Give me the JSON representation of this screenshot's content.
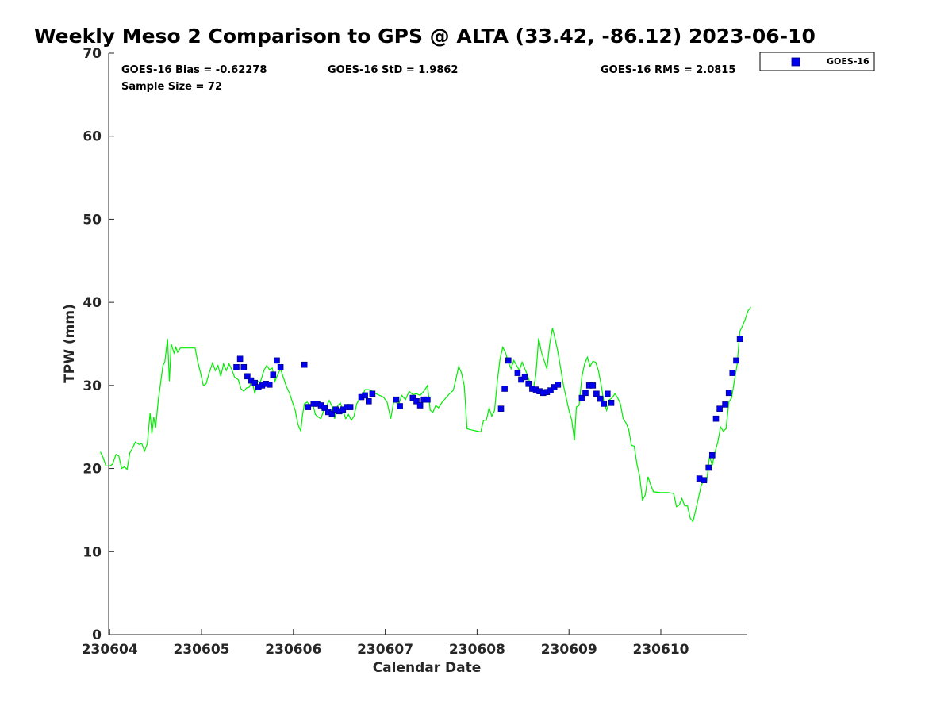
{
  "chart_data": {
    "type": "scatter",
    "title": "Weekly Meso 2 Comparison to GPS @ ALTA (33.42, -86.12) 2023-06-10",
    "xlabel": "Calendar Date",
    "ylabel": "TPW (mm)",
    "x_ticks": [
      "230604",
      "230605",
      "230606",
      "230607",
      "230608",
      "230609",
      "230610"
    ],
    "y_ticks": [
      "0",
      "10",
      "20",
      "30",
      "40",
      "50",
      "60",
      "70"
    ],
    "xlim": [
      0,
      7
    ],
    "ylim": [
      0,
      70
    ],
    "x_unit_note_days_from": "230604",
    "stats": {
      "bias": "GOES-16 Bias = -0.62278",
      "std": "GOES-16 StD = 1.9862",
      "rms": "GOES-16 RMS = 2.0815",
      "sample": "Sample Size = 72"
    },
    "legend": {
      "placement": "top-right-outside",
      "entries": [
        "GOES-16"
      ]
    },
    "colors": {
      "gps_line": "#00ee00",
      "goes_marker": "#0000ee",
      "marker_edge": "#000080"
    },
    "series": [
      {
        "kind": "line",
        "points": [
          [
            -0.1,
            22.0
          ],
          [
            -0.07,
            21.3
          ],
          [
            -0.04,
            20.3
          ],
          [
            0.0,
            20.3
          ],
          [
            0.03,
            20.5
          ],
          [
            0.07,
            21.7
          ],
          [
            0.1,
            21.5
          ],
          [
            0.13,
            20.0
          ],
          [
            0.16,
            20.2
          ],
          [
            0.19,
            19.9
          ],
          [
            0.22,
            21.9
          ],
          [
            0.25,
            22.5
          ],
          [
            0.28,
            23.2
          ],
          [
            0.32,
            22.9
          ],
          [
            0.35,
            23.0
          ],
          [
            0.38,
            22.1
          ],
          [
            0.41,
            23.0
          ],
          [
            0.44,
            26.7
          ],
          [
            0.46,
            24.2
          ],
          [
            0.48,
            26.2
          ],
          [
            0.5,
            24.9
          ],
          [
            0.53,
            28.3
          ],
          [
            0.56,
            30.7
          ],
          [
            0.58,
            32.4
          ],
          [
            0.6,
            32.8
          ],
          [
            0.63,
            35.6
          ],
          [
            0.65,
            30.5
          ],
          [
            0.67,
            35.0
          ],
          [
            0.7,
            33.9
          ],
          [
            0.72,
            34.6
          ],
          [
            0.74,
            34.0
          ],
          [
            0.77,
            34.5
          ],
          [
            0.85,
            34.5
          ],
          [
            0.93,
            34.5
          ],
          [
            0.96,
            32.8
          ],
          [
            0.99,
            31.5
          ],
          [
            1.02,
            30.0
          ],
          [
            1.05,
            30.2
          ],
          [
            1.08,
            31.4
          ],
          [
            1.12,
            32.7
          ],
          [
            1.15,
            31.8
          ],
          [
            1.18,
            32.4
          ],
          [
            1.21,
            31.1
          ],
          [
            1.24,
            32.6
          ],
          [
            1.27,
            31.8
          ],
          [
            1.3,
            32.6
          ],
          [
            1.33,
            31.9
          ],
          [
            1.36,
            31.0
          ],
          [
            1.4,
            30.7
          ],
          [
            1.43,
            29.6
          ],
          [
            1.46,
            29.3
          ],
          [
            1.49,
            29.7
          ],
          [
            1.52,
            29.8
          ],
          [
            1.55,
            30.6
          ],
          [
            1.58,
            29.0
          ],
          [
            1.61,
            30.5
          ],
          [
            1.64,
            30.4
          ],
          [
            1.68,
            31.8
          ],
          [
            1.71,
            32.4
          ],
          [
            1.74,
            31.9
          ],
          [
            1.77,
            32.1
          ],
          [
            1.8,
            30.5
          ],
          [
            1.83,
            31.3
          ],
          [
            1.86,
            32.0
          ],
          [
            1.89,
            31.0
          ],
          [
            1.92,
            30.0
          ],
          [
            1.96,
            29.0
          ],
          [
            1.99,
            28.0
          ],
          [
            2.02,
            27.0
          ],
          [
            2.05,
            25.3
          ],
          [
            2.08,
            24.5
          ],
          [
            2.1,
            26.5
          ],
          [
            2.12,
            27.8
          ],
          [
            2.15,
            28.0
          ],
          [
            2.18,
            27.6
          ],
          [
            2.21,
            27.8
          ],
          [
            2.24,
            26.5
          ],
          [
            2.27,
            26.2
          ],
          [
            2.3,
            26.0
          ],
          [
            2.33,
            27.0
          ],
          [
            2.36,
            27.5
          ],
          [
            2.39,
            28.2
          ],
          [
            2.42,
            27.5
          ],
          [
            2.45,
            26.0
          ],
          [
            2.48,
            27.5
          ],
          [
            2.51,
            27.9
          ],
          [
            2.54,
            27.0
          ],
          [
            2.57,
            26.0
          ],
          [
            2.6,
            26.5
          ],
          [
            2.63,
            25.8
          ],
          [
            2.66,
            26.3
          ],
          [
            2.69,
            27.8
          ],
          [
            2.72,
            28.4
          ],
          [
            2.75,
            28.6
          ],
          [
            2.78,
            29.5
          ],
          [
            2.82,
            29.5
          ],
          [
            2.86,
            29.3
          ],
          [
            2.9,
            29.0
          ],
          [
            2.94,
            28.8
          ],
          [
            2.98,
            28.6
          ],
          [
            3.02,
            28.0
          ],
          [
            3.06,
            26.0
          ],
          [
            3.1,
            28.5
          ],
          [
            3.14,
            27.5
          ],
          [
            3.18,
            28.8
          ],
          [
            3.22,
            28.3
          ],
          [
            3.26,
            29.3
          ],
          [
            3.3,
            28.9
          ],
          [
            3.34,
            29.0
          ],
          [
            3.38,
            28.8
          ],
          [
            3.42,
            29.3
          ],
          [
            3.46,
            30.0
          ],
          [
            3.49,
            27.0
          ],
          [
            3.52,
            26.8
          ],
          [
            3.55,
            27.6
          ],
          [
            3.58,
            27.3
          ],
          [
            3.62,
            28.0
          ],
          [
            3.66,
            28.5
          ],
          [
            3.7,
            29.0
          ],
          [
            3.74,
            29.4
          ],
          [
            3.77,
            30.8
          ],
          [
            3.8,
            32.3
          ],
          [
            3.83,
            31.5
          ],
          [
            3.86,
            30.0
          ],
          [
            3.89,
            24.8
          ],
          [
            3.92,
            24.7
          ],
          [
            3.96,
            24.6
          ],
          [
            4.0,
            24.5
          ],
          [
            4.04,
            24.4
          ],
          [
            4.07,
            25.8
          ],
          [
            4.1,
            25.8
          ],
          [
            4.13,
            27.3
          ],
          [
            4.16,
            26.3
          ],
          [
            4.19,
            27.0
          ],
          [
            4.22,
            30.5
          ],
          [
            4.25,
            33.2
          ],
          [
            4.28,
            34.6
          ],
          [
            4.31,
            33.9
          ],
          [
            4.34,
            32.8
          ],
          [
            4.37,
            32.0
          ],
          [
            4.4,
            33.0
          ],
          [
            4.43,
            32.4
          ],
          [
            4.46,
            31.8
          ],
          [
            4.49,
            32.8
          ],
          [
            4.52,
            32.0
          ],
          [
            4.55,
            31.2
          ],
          [
            4.58,
            30.1
          ],
          [
            4.61,
            29.4
          ],
          [
            4.64,
            31.3
          ],
          [
            4.67,
            35.7
          ],
          [
            4.7,
            34.0
          ],
          [
            4.73,
            33.0
          ],
          [
            4.76,
            32.0
          ],
          [
            4.79,
            35.0
          ],
          [
            4.82,
            36.9
          ],
          [
            4.85,
            35.6
          ],
          [
            4.88,
            34.0
          ],
          [
            4.91,
            32.0
          ],
          [
            4.94,
            30.0
          ],
          [
            4.97,
            28.5
          ],
          [
            5.0,
            27.0
          ],
          [
            5.03,
            25.8
          ],
          [
            5.06,
            23.4
          ],
          [
            5.08,
            27.4
          ],
          [
            5.11,
            27.6
          ],
          [
            5.14,
            31.0
          ],
          [
            5.17,
            32.6
          ],
          [
            5.2,
            33.4
          ],
          [
            5.23,
            32.3
          ],
          [
            5.26,
            32.9
          ],
          [
            5.29,
            32.8
          ],
          [
            5.32,
            31.8
          ],
          [
            5.35,
            30.1
          ],
          [
            5.38,
            28.0
          ],
          [
            5.41,
            27.0
          ],
          [
            5.44,
            28.3
          ],
          [
            5.47,
            28.5
          ],
          [
            5.5,
            29.0
          ],
          [
            5.53,
            28.5
          ],
          [
            5.56,
            27.8
          ],
          [
            5.59,
            26.0
          ],
          [
            5.62,
            25.5
          ],
          [
            5.65,
            24.7
          ],
          [
            5.68,
            22.8
          ],
          [
            5.71,
            22.7
          ],
          [
            5.74,
            20.5
          ],
          [
            5.77,
            19.0
          ],
          [
            5.8,
            16.2
          ],
          [
            5.83,
            16.8
          ],
          [
            5.86,
            19.0
          ],
          [
            5.89,
            18.0
          ],
          [
            5.92,
            17.2
          ],
          [
            6.0,
            17.1
          ],
          [
            6.08,
            17.1
          ],
          [
            6.14,
            17.0
          ],
          [
            6.17,
            15.4
          ],
          [
            6.2,
            15.6
          ],
          [
            6.23,
            16.4
          ],
          [
            6.26,
            15.5
          ],
          [
            6.29,
            15.5
          ],
          [
            6.32,
            14.0
          ],
          [
            6.35,
            13.6
          ],
          [
            6.38,
            15.0
          ],
          [
            6.41,
            16.5
          ],
          [
            6.44,
            18.0
          ],
          [
            6.47,
            18.6
          ],
          [
            6.5,
            18.5
          ],
          [
            6.53,
            21.5
          ],
          [
            6.56,
            20.4
          ],
          [
            6.59,
            22.0
          ],
          [
            6.62,
            23.2
          ],
          [
            6.65,
            25.0
          ],
          [
            6.68,
            24.5
          ],
          [
            6.71,
            24.8
          ],
          [
            6.74,
            28.0
          ],
          [
            6.77,
            28.5
          ],
          [
            6.8,
            30.5
          ],
          [
            6.83,
            32.5
          ],
          [
            6.86,
            36.5
          ],
          [
            6.89,
            37.2
          ],
          [
            6.92,
            38.0
          ],
          [
            6.95,
            39.0
          ],
          [
            6.98,
            39.4
          ]
        ]
      },
      {
        "name": "GOES-16",
        "kind": "scatter",
        "points": [
          [
            1.38,
            32.2
          ],
          [
            1.42,
            33.2
          ],
          [
            1.46,
            32.2
          ],
          [
            1.5,
            31.1
          ],
          [
            1.54,
            30.6
          ],
          [
            1.58,
            30.3
          ],
          [
            1.62,
            29.8
          ],
          [
            1.66,
            30.0
          ],
          [
            1.7,
            30.2
          ],
          [
            1.74,
            30.1
          ],
          [
            1.78,
            31.3
          ],
          [
            1.82,
            33.0
          ],
          [
            1.86,
            32.2
          ],
          [
            2.12,
            32.5
          ],
          [
            2.16,
            27.4
          ],
          [
            2.22,
            27.8
          ],
          [
            2.26,
            27.8
          ],
          [
            2.3,
            27.6
          ],
          [
            2.34,
            27.3
          ],
          [
            2.38,
            26.8
          ],
          [
            2.42,
            26.6
          ],
          [
            2.46,
            27.1
          ],
          [
            2.5,
            26.9
          ],
          [
            2.54,
            27.1
          ],
          [
            2.58,
            27.4
          ],
          [
            2.62,
            27.4
          ],
          [
            2.74,
            28.6
          ],
          [
            2.78,
            28.8
          ],
          [
            2.82,
            28.1
          ],
          [
            2.86,
            29.0
          ],
          [
            3.12,
            28.3
          ],
          [
            3.16,
            27.5
          ],
          [
            3.3,
            28.5
          ],
          [
            3.34,
            28.1
          ],
          [
            3.38,
            27.6
          ],
          [
            3.42,
            28.3
          ],
          [
            3.46,
            28.3
          ],
          [
            4.26,
            27.2
          ],
          [
            4.3,
            29.6
          ],
          [
            4.34,
            33.0
          ],
          [
            4.44,
            31.5
          ],
          [
            4.48,
            30.7
          ],
          [
            4.52,
            31.0
          ],
          [
            4.56,
            30.2
          ],
          [
            4.6,
            29.6
          ],
          [
            4.64,
            29.5
          ],
          [
            4.68,
            29.3
          ],
          [
            4.72,
            29.1
          ],
          [
            4.76,
            29.2
          ],
          [
            4.8,
            29.4
          ],
          [
            4.84,
            29.8
          ],
          [
            4.88,
            30.1
          ],
          [
            5.14,
            28.5
          ],
          [
            5.18,
            29.1
          ],
          [
            5.22,
            30.0
          ],
          [
            5.26,
            30.0
          ],
          [
            5.3,
            29.0
          ],
          [
            5.34,
            28.4
          ],
          [
            5.38,
            27.8
          ],
          [
            5.42,
            29.0
          ],
          [
            5.46,
            27.9
          ],
          [
            6.42,
            18.8
          ],
          [
            6.47,
            18.6
          ],
          [
            6.52,
            20.1
          ],
          [
            6.56,
            21.6
          ],
          [
            6.6,
            26.0
          ],
          [
            6.64,
            27.2
          ],
          [
            6.7,
            27.7
          ],
          [
            6.74,
            29.1
          ],
          [
            6.78,
            31.5
          ],
          [
            6.82,
            33.0
          ],
          [
            6.86,
            35.6
          ]
        ]
      }
    ]
  }
}
